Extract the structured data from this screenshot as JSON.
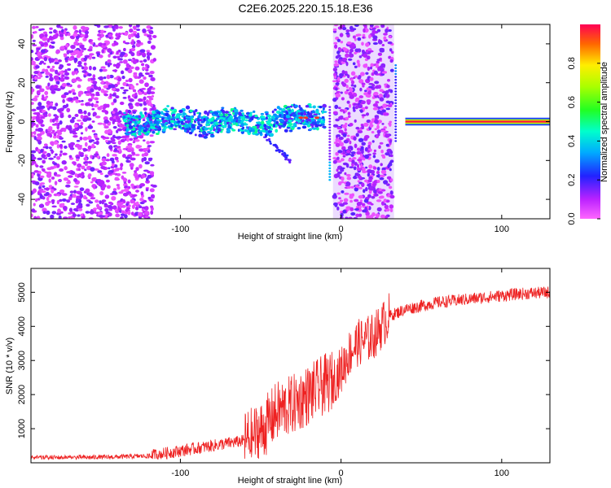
{
  "title": "C2E6.2025.220.15.18.E36",
  "colors": {
    "snr_line": "#ee2222",
    "frame": "#000000"
  },
  "chart_data": [
    {
      "type": "heatmap",
      "xlabel": "Height of straight line (km)",
      "ylabel": "Frequency (Hz)",
      "xlim": [
        -193,
        130
      ],
      "ylim": [
        -50,
        50
      ],
      "x_ticks": [
        -100,
        0,
        100
      ],
      "y_ticks": [
        -40,
        -20,
        0,
        20,
        40
      ],
      "colorbar": {
        "label": "Normalized spectral amplitude",
        "range": [
          0,
          1
        ],
        "ticks": [
          0.0,
          0.2,
          0.4,
          0.6,
          0.8
        ],
        "colormap": "rainbow (magenta-blue-cyan-green-yellow-red)"
      }
    },
    {
      "type": "line",
      "xlabel": "Height of straight line (km)",
      "ylabel": "SNR (10 * v/v)",
      "xlim": [
        -193,
        130
      ],
      "ylim": [
        0,
        5700
      ],
      "x_ticks": [
        -100,
        0,
        100
      ],
      "y_ticks": [
        1000,
        2000,
        3000,
        4000,
        5000
      ],
      "series": [
        {
          "trend_x": [
            -193,
            -150,
            -120,
            -100,
            -80,
            -60,
            -50,
            -40,
            -30,
            -20,
            -10,
            -5,
            0,
            5,
            10,
            20,
            30,
            40,
            60,
            80,
            100,
            110,
            130
          ],
          "trend_y": [
            150,
            160,
            200,
            350,
            500,
            650,
            900,
            1500,
            1700,
            2000,
            2300,
            2400,
            2700,
            3200,
            3500,
            3700,
            4300,
            4500,
            4700,
            4800,
            4900,
            4950,
            5000
          ]
        }
      ]
    }
  ]
}
